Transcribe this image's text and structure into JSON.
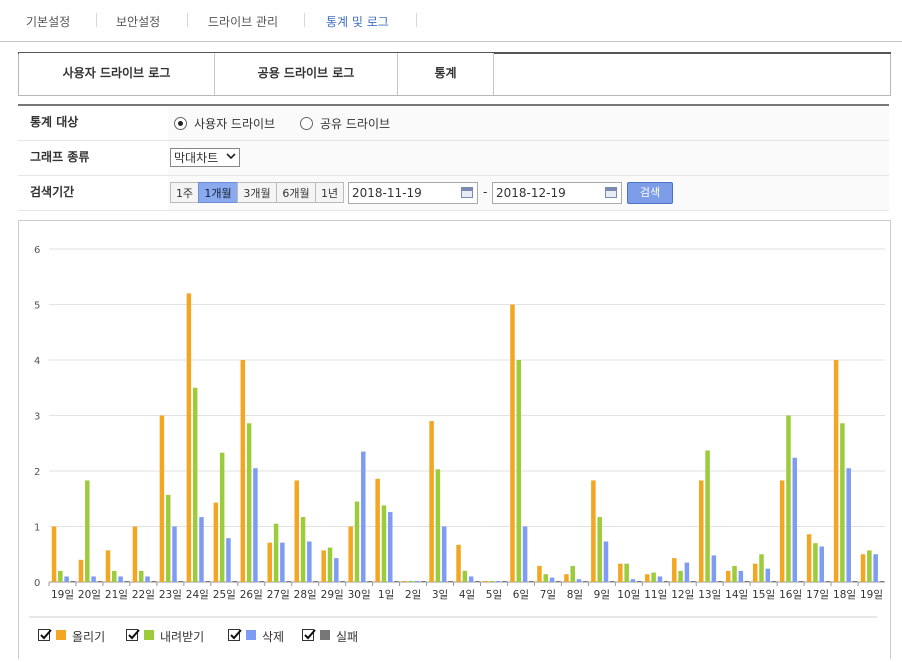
{
  "topnav": {
    "items": [
      {
        "label": "기본설정"
      },
      {
        "label": "보안설정"
      },
      {
        "label": "드라이브 관리"
      },
      {
        "label": "통계 및 로그"
      }
    ]
  },
  "tabs": [
    {
      "label": "사용자 드라이브 로그"
    },
    {
      "label": "공용 드라이브 로그"
    },
    {
      "label": "통계"
    }
  ],
  "filters": {
    "target_label": "통계 대상",
    "target_options": [
      {
        "label": "사용자 드라이브",
        "selected": true
      },
      {
        "label": "공유 드라이브",
        "selected": false
      }
    ],
    "graph_label": "그래프 종류",
    "graph_value": "막대차트",
    "period_label": "검색기간",
    "period_buttons": [
      {
        "label": "1주",
        "selected": false
      },
      {
        "label": "1개월",
        "selected": true
      },
      {
        "label": "3개월",
        "selected": false
      },
      {
        "label": "6개월",
        "selected": false
      },
      {
        "label": "1년",
        "selected": false
      }
    ],
    "start_date": "2018-11-19",
    "separator": "-",
    "end_date": "2018-12-19",
    "search_label": "검색"
  },
  "chart_data": {
    "type": "bar",
    "ylim": [
      0,
      6
    ],
    "yticks": [
      0,
      1,
      2,
      3,
      4,
      5,
      6
    ],
    "grid": true,
    "legend_position": "bottom-left",
    "categories": [
      "19일",
      "20일",
      "21일",
      "22일",
      "23일",
      "24일",
      "25일",
      "26일",
      "27일",
      "28일",
      "29일",
      "30일",
      "1일",
      "2일",
      "3일",
      "4일",
      "5일",
      "6일",
      "7일",
      "8일",
      "9일",
      "10일",
      "11일",
      "12일",
      "13일",
      "14일",
      "15일",
      "16일",
      "17일",
      "18일",
      "19일"
    ],
    "series": [
      {
        "name": "올리기",
        "color": "#f2a622",
        "values": [
          1.0,
          0.4,
          0.57,
          1.0,
          3.0,
          5.2,
          1.43,
          4.0,
          0.71,
          1.83,
          0.57,
          1.0,
          1.86,
          0,
          2.9,
          0.67,
          0,
          5.0,
          0.29,
          0.14,
          1.83,
          0.33,
          0.14,
          0.43,
          1.83,
          0.2,
          0.33,
          1.83,
          0.86,
          4.0,
          0.5
        ]
      },
      {
        "name": "내려받기",
        "color": "#9ccb3b",
        "values": [
          0.2,
          1.83,
          0.2,
          0.2,
          1.57,
          3.5,
          2.33,
          2.86,
          1.05,
          1.17,
          0.62,
          1.45,
          1.38,
          0,
          2.03,
          0.2,
          0,
          4.0,
          0.14,
          0.29,
          1.17,
          0.33,
          0.17,
          0.2,
          2.37,
          0.29,
          0.5,
          3.0,
          0.7,
          2.86,
          0.57
        ]
      },
      {
        "name": "삭제",
        "color": "#7f9cf5",
        "values": [
          0.1,
          0.1,
          0.1,
          0.1,
          1.0,
          1.17,
          0.79,
          2.05,
          0.71,
          0.73,
          0.43,
          2.35,
          1.26,
          0,
          1.0,
          0.1,
          0,
          1.0,
          0.08,
          0.05,
          0.73,
          0.05,
          0.1,
          0.35,
          0.48,
          0.2,
          0.24,
          2.24,
          0.64,
          2.05,
          0.5
        ]
      },
      {
        "name": "실패",
        "color": "#777777",
        "values": [
          0,
          0,
          0,
          0,
          0,
          0,
          0,
          0,
          0,
          0,
          0,
          0,
          0,
          0,
          0,
          0,
          0,
          0,
          0,
          0,
          0,
          0,
          0,
          0,
          0,
          0,
          0,
          0,
          0,
          0,
          0
        ]
      }
    ]
  }
}
